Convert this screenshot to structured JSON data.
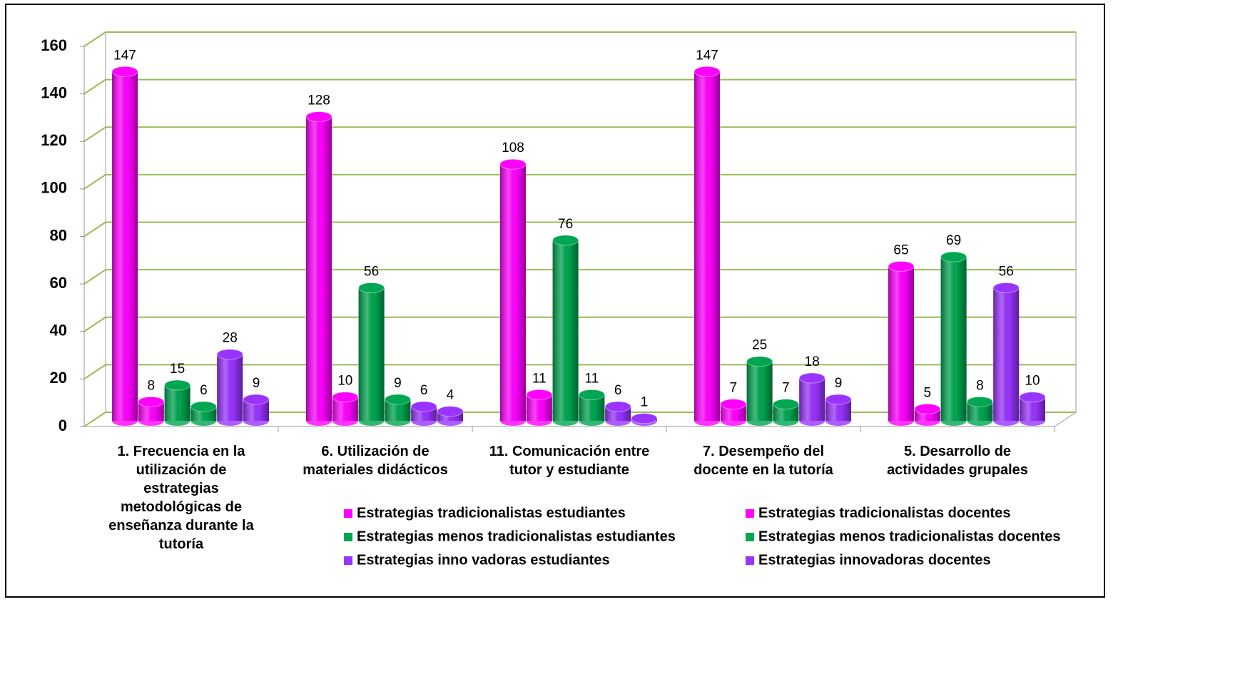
{
  "chart_data": {
    "type": "bar",
    "categories": [
      "1. Frecuencia en la utilización de estrategias metodológicas de enseñanza durante la tutoría",
      "6. Utilización de materiales didácticos",
      "11. Comunicación entre tutor y estudiante",
      "7. Desempeño del docente en la tutoría",
      "5. Desarrollo de actividades grupales"
    ],
    "series": [
      {
        "name": "Estrategias tradicionalistas estudiantes",
        "color": "#ff00ff",
        "values": [
          147,
          128,
          108,
          147,
          65
        ]
      },
      {
        "name": "Estrategias tradicionalistas docentes",
        "color": "#ff00ff",
        "values": [
          8,
          10,
          11,
          7,
          5
        ]
      },
      {
        "name": "Estrategias menos tradicionalistas estudiantes",
        "color": "#00a651",
        "values": [
          15,
          56,
          76,
          25,
          69
        ]
      },
      {
        "name": "Estrategias menos tradicionalistas docentes",
        "color": "#00a651",
        "values": [
          6,
          9,
          11,
          7,
          8
        ]
      },
      {
        "name": "Estrategias inno vadoras estudiantes",
        "color": "#9933ff",
        "values": [
          28,
          6,
          6,
          18,
          56
        ]
      },
      {
        "name": "Estrategias innovadoras docentes",
        "color": "#9933ff",
        "values": [
          9,
          4,
          1,
          9,
          10
        ]
      }
    ],
    "ylim": [
      0,
      160
    ],
    "yticks": [
      0,
      20,
      40,
      60,
      80,
      100,
      120,
      140,
      160
    ],
    "grid": true
  }
}
